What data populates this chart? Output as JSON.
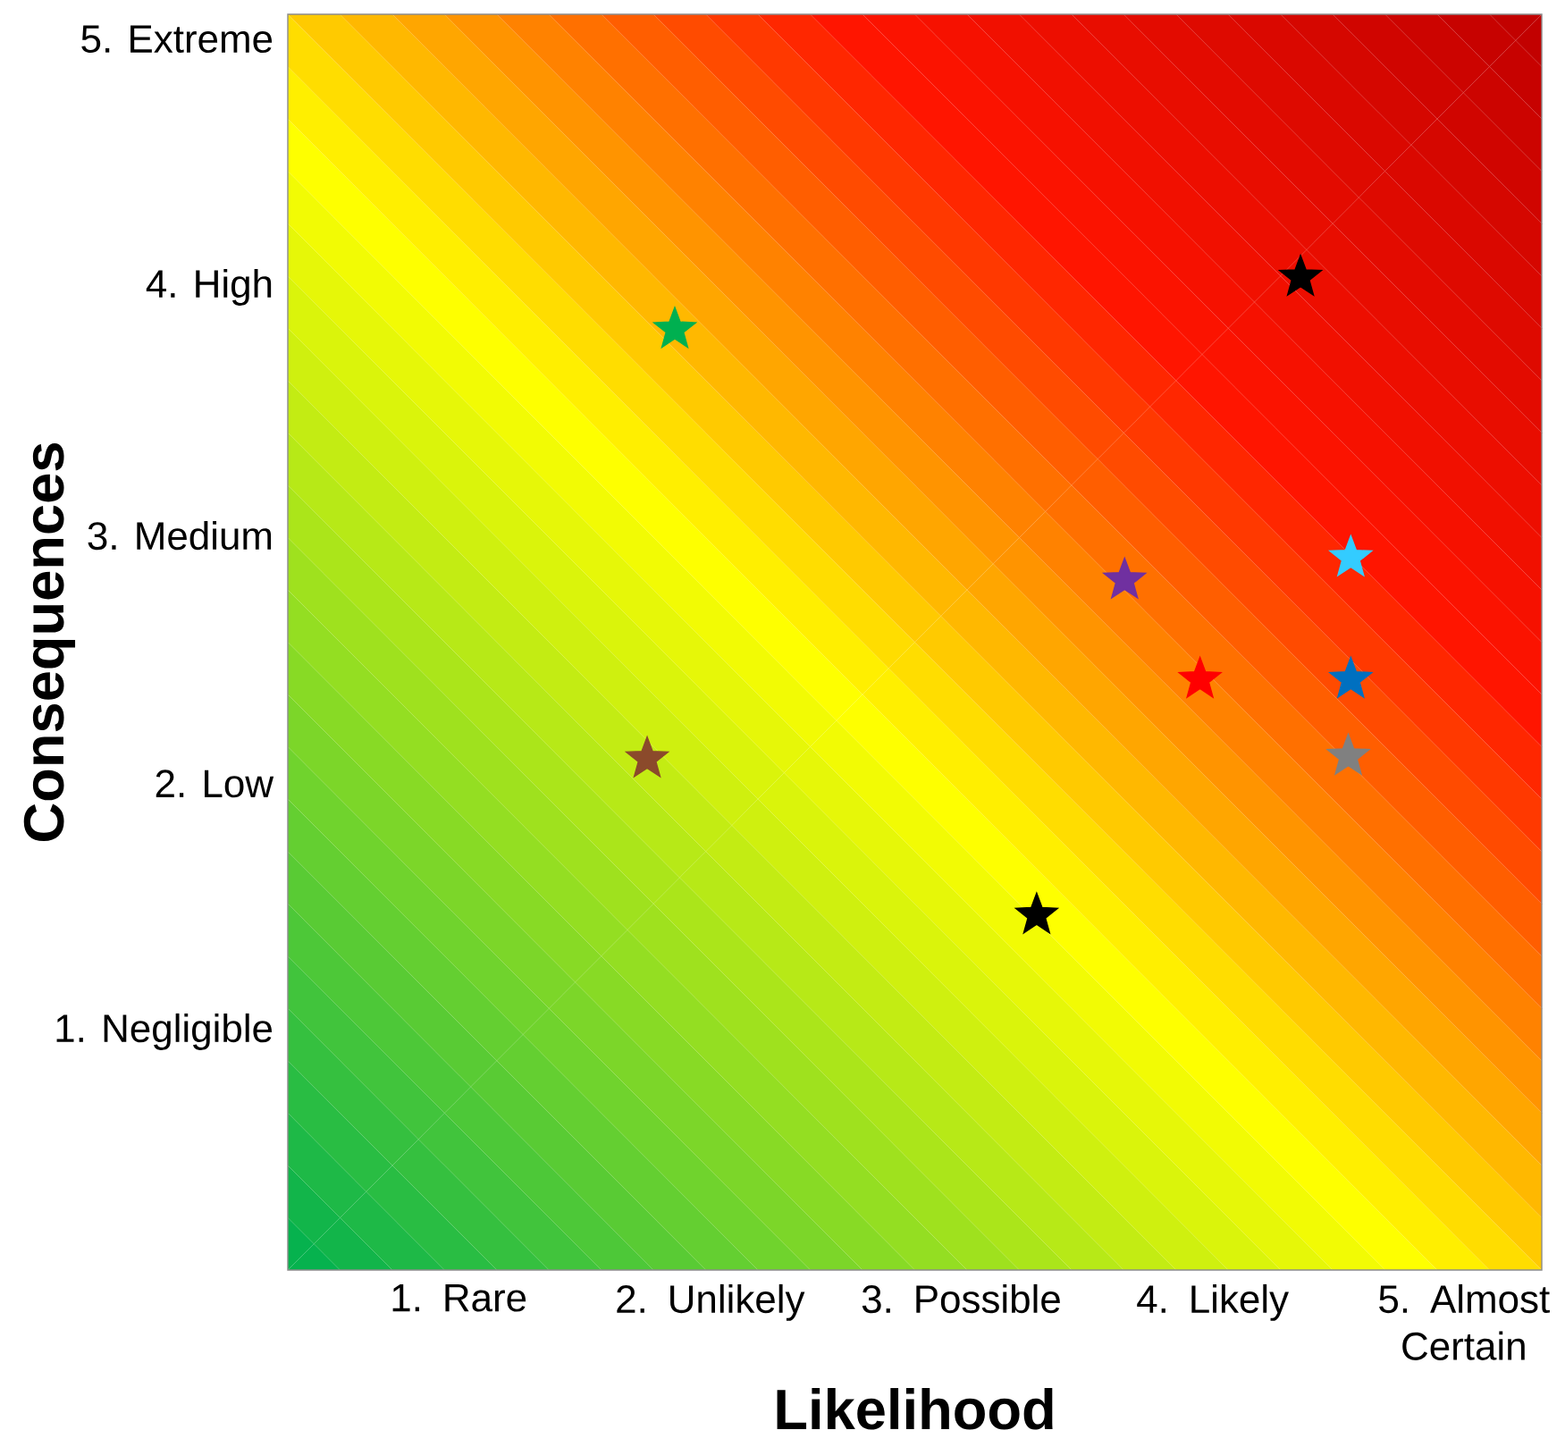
{
  "chart_data": {
    "type": "scatter",
    "xlabel": "Likelihood",
    "ylabel": "Consequences",
    "marker": "star",
    "xlim": [
      0.32,
      5.31
    ],
    "ylim": [
      0.04,
      5.1
    ],
    "xticks": [
      {
        "value": 1,
        "label": "1. Rare"
      },
      {
        "value": 2,
        "label": "2. Unlikely"
      },
      {
        "value": 3,
        "label": "3. Possible"
      },
      {
        "value": 4,
        "label": "4. Likely"
      },
      {
        "value": 5,
        "label": "5. Almost Certain"
      }
    ],
    "yticks": [
      {
        "value": 1,
        "label": "1. Negligible"
      },
      {
        "value": 2,
        "label": "2. Low"
      },
      {
        "value": 3,
        "label": "3. Medium"
      },
      {
        "value": 4,
        "label": "4. High"
      },
      {
        "value": 5,
        "label": "5. Extreme"
      }
    ],
    "series": [
      {
        "color": "#00b050",
        "x": [
          1.86
        ],
        "values": [
          3.83
        ]
      },
      {
        "color": "#000000",
        "x": [
          4.35
        ],
        "values": [
          4.04
        ]
      },
      {
        "color": "#7030a0",
        "x": [
          3.65
        ],
        "values": [
          2.82
        ]
      },
      {
        "color": "#33ccff",
        "x": [
          4.55
        ],
        "values": [
          2.91
        ]
      },
      {
        "color": "#ff0000",
        "x": [
          3.95
        ],
        "values": [
          2.42
        ]
      },
      {
        "color": "#0070c0",
        "x": [
          4.55
        ],
        "values": [
          2.42
        ]
      },
      {
        "color": "#808080",
        "x": [
          4.54
        ],
        "values": [
          2.11
        ]
      },
      {
        "color": "#8b4a2b",
        "x": [
          1.75
        ],
        "values": [
          2.1
        ]
      },
      {
        "color": "#000000",
        "x": [
          3.3
        ],
        "values": [
          1.47
        ]
      }
    ]
  }
}
